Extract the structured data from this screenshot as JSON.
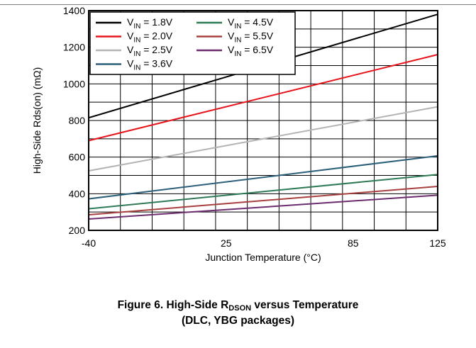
{
  "chart_data": {
    "type": "line",
    "xlabel": "Junction Temperature (°C)",
    "ylabel": "High-Side Rds(on) (mΩ)",
    "xlim": [
      -40,
      125
    ],
    "ylim": [
      200,
      1400
    ],
    "xticks": [
      -40,
      25,
      85,
      125
    ],
    "yticks": [
      200,
      400,
      600,
      800,
      1000,
      1200,
      1400
    ],
    "grid": true,
    "legend_position": "top-left",
    "x": [
      -40,
      125
    ],
    "series": [
      {
        "name_main": "V",
        "name_sub": "IN",
        "name_rest": " = 1.8V",
        "color": "#000000",
        "values": [
          815,
          1380
        ]
      },
      {
        "name_main": "V",
        "name_sub": "IN",
        "name_rest": " = 2.0V",
        "color": "#e8141b",
        "values": [
          690,
          1160
        ]
      },
      {
        "name_main": "V",
        "name_sub": "IN",
        "name_rest": " = 2.5V",
        "color": "#b4b4b4",
        "values": [
          525,
          875
        ]
      },
      {
        "name_main": "V",
        "name_sub": "IN",
        "name_rest": " = 3.6V",
        "color": "#2b5f7a",
        "values": [
          372,
          607
        ]
      },
      {
        "name_main": "V",
        "name_sub": "IN",
        "name_rest": " = 4.5V",
        "color": "#2e7a55",
        "values": [
          318,
          505
        ]
      },
      {
        "name_main": "V",
        "name_sub": "IN",
        "name_rest": " = 5.5V",
        "color": "#a8403f",
        "values": [
          285,
          440
        ]
      },
      {
        "name_main": "V",
        "name_sub": "IN",
        "name_rest": " = 6.5V",
        "color": "#6b2d6e",
        "values": [
          262,
          392
        ]
      }
    ]
  },
  "caption": {
    "line1_prefix": "Figure 6. High-Side R",
    "line1_sub": "DSON",
    "line1_suffix": " versus Temperature",
    "line2": "(DLC, YBG packages)"
  }
}
